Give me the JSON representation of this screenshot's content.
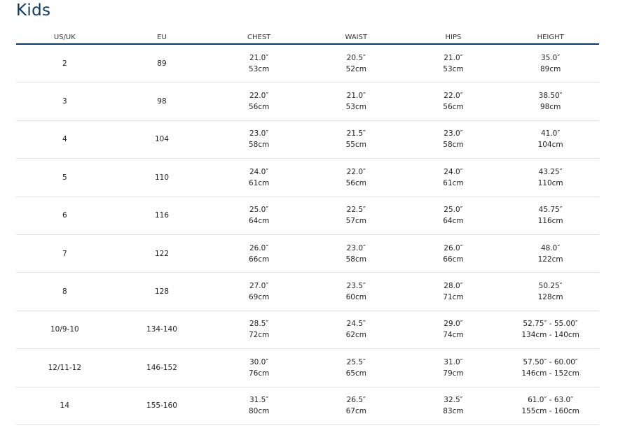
{
  "title": "Kids",
  "columns": [
    "US/UK",
    "EU",
    "CHEST",
    "WAIST",
    "HIPS",
    "HEIGHT"
  ],
  "rows": [
    {
      "us_uk": "2",
      "eu": "89",
      "chest": [
        "21.0″",
        "53cm"
      ],
      "waist": [
        "20.5″",
        "52cm"
      ],
      "hips": [
        "21.0″",
        "53cm"
      ],
      "height": [
        "35.0″",
        "89cm"
      ]
    },
    {
      "us_uk": "3",
      "eu": "98",
      "chest": [
        "22.0″",
        "56cm"
      ],
      "waist": [
        "21.0″",
        "53cm"
      ],
      "hips": [
        "22.0″",
        "56cm"
      ],
      "height": [
        "38.50″",
        "98cm"
      ]
    },
    {
      "us_uk": "4",
      "eu": "104",
      "chest": [
        "23.0″",
        "58cm"
      ],
      "waist": [
        "21.5″",
        "55cm"
      ],
      "hips": [
        "23.0″",
        "58cm"
      ],
      "height": [
        "41.0″",
        "104cm"
      ]
    },
    {
      "us_uk": "5",
      "eu": "110",
      "chest": [
        "24.0″",
        "61cm"
      ],
      "waist": [
        "22.0″",
        "56cm"
      ],
      "hips": [
        "24.0″",
        "61cm"
      ],
      "height": [
        "43.25″",
        "110cm"
      ]
    },
    {
      "us_uk": "6",
      "eu": "116",
      "chest": [
        "25.0″",
        "64cm"
      ],
      "waist": [
        "22.5″",
        "57cm"
      ],
      "hips": [
        "25.0″",
        "64cm"
      ],
      "height": [
        "45.75″",
        "116cm"
      ]
    },
    {
      "us_uk": "7",
      "eu": "122",
      "chest": [
        "26.0″",
        "66cm"
      ],
      "waist": [
        "23.0″",
        "58cm"
      ],
      "hips": [
        "26.0″",
        "66cm"
      ],
      "height": [
        "48.0″",
        "122cm"
      ]
    },
    {
      "us_uk": "8",
      "eu": "128",
      "chest": [
        "27.0″",
        "69cm"
      ],
      "waist": [
        "23.5″",
        "60cm"
      ],
      "hips": [
        "28.0″",
        "71cm"
      ],
      "height": [
        "50.25″",
        "128cm"
      ]
    },
    {
      "us_uk": "10/9-10",
      "eu": "134-140",
      "chest": [
        "28.5″",
        "72cm"
      ],
      "waist": [
        "24.5″",
        "62cm"
      ],
      "hips": [
        "29.0″",
        "74cm"
      ],
      "height": [
        "52.75″ - 55.00″",
        "134cm - 140cm"
      ]
    },
    {
      "us_uk": "12/11-12",
      "eu": "146-152",
      "chest": [
        "30.0″",
        "76cm"
      ],
      "waist": [
        "25.5″",
        "65cm"
      ],
      "hips": [
        "31.0″",
        "79cm"
      ],
      "height": [
        "57.50″ - 60.00″",
        "146cm - 152cm"
      ]
    },
    {
      "us_uk": "14",
      "eu": "155-160",
      "chest": [
        "31.5″",
        "80cm"
      ],
      "waist": [
        "26.5″",
        "67cm"
      ],
      "hips": [
        "32.5″",
        "83cm"
      ],
      "height": [
        "61.0″ - 63.0″",
        "155cm - 160cm"
      ]
    }
  ],
  "colors": {
    "accent": "#0f3a5f",
    "divider": "#e0e0e0"
  }
}
